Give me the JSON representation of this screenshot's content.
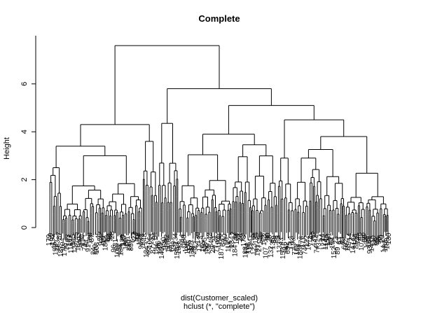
{
  "chart_data": {
    "type": "dendrogram",
    "title": "Complete",
    "ylabel": "Height",
    "xlabel": "dist(Customer_scaled)",
    "sublabel": "hclust (*, \"complete\")",
    "ylim": [
      0,
      7.7
    ],
    "yticks": [
      0,
      2,
      4,
      6
    ],
    "root_height": 7.6,
    "merges": [
      {
        "name": "root",
        "height": 7.6
      },
      {
        "name": "left-main",
        "height": 4.3
      },
      {
        "name": "right-main",
        "height": 5.8
      },
      {
        "name": "right-a",
        "height": 4.35
      },
      {
        "name": "right-b",
        "height": 5.1
      },
      {
        "name": "right-b-1",
        "height": 3.9
      },
      {
        "name": "right-b-2",
        "height": 4.5
      },
      {
        "name": "right-b-2a",
        "height": 3.8
      },
      {
        "name": "left-a",
        "height": 3.4
      },
      {
        "name": "left-b",
        "height": 3.6
      },
      {
        "name": "left-a-2",
        "height": 3.0
      }
    ],
    "leaf_count": 200
  }
}
